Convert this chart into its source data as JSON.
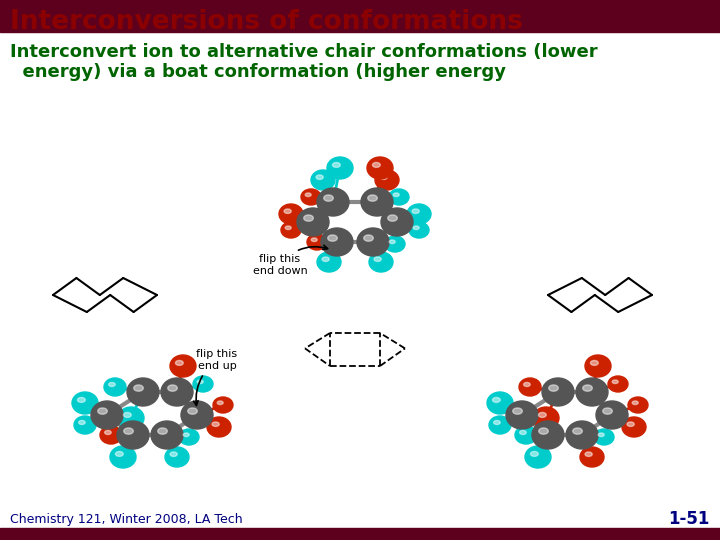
{
  "title": "Interconversions of conformations",
  "subtitle_line1": "Interconvert ion to alternative chair conformations (lower",
  "subtitle_line2": "  energy) via a boat conformation (higher energy",
  "footer_left": "Chemistry 121, Winter 2008, LA Tech",
  "footer_right": "1-51",
  "title_color": "#8B0000",
  "subtitle_color": "#006400",
  "footer_color": "#000080",
  "header_bar_color": "#5C001E",
  "footer_bar_color": "#5C001E",
  "bg_color": "#FFFFFF",
  "gray_color": "#555555",
  "red_color": "#CC2200",
  "cyan_color": "#00CCCC",
  "flip_down_label": "flip this\nend down",
  "flip_up_label": "flip this\nend up",
  "title_fontsize": 19,
  "subtitle_fontsize": 13,
  "footer_fontsize": 9
}
